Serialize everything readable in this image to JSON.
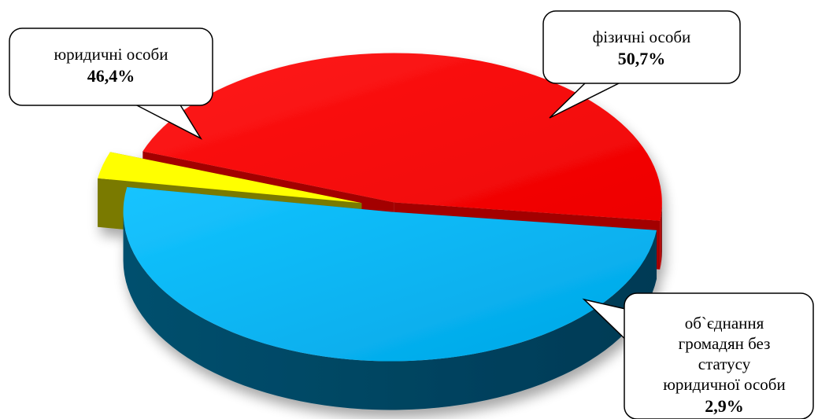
{
  "chart_data": {
    "type": "pie",
    "style": "3d-exploded",
    "legend": "none",
    "slices": [
      {
        "name": "юридичні особи",
        "value": 46.4,
        "label": "46,4%",
        "color": "#ff0000",
        "side_color": "#a30000"
      },
      {
        "name": "фізичні особи",
        "value": 50.7,
        "label": "50,7%",
        "color": "#00aeef",
        "side_color": "#005a7c"
      },
      {
        "name_lines": [
          "об`єднання",
          "громадян без",
          "статусу",
          "юридичної особи"
        ],
        "value": 2.9,
        "label": "2,9%",
        "color": "#ffff00",
        "side_color": "#7a7a00"
      }
    ]
  }
}
